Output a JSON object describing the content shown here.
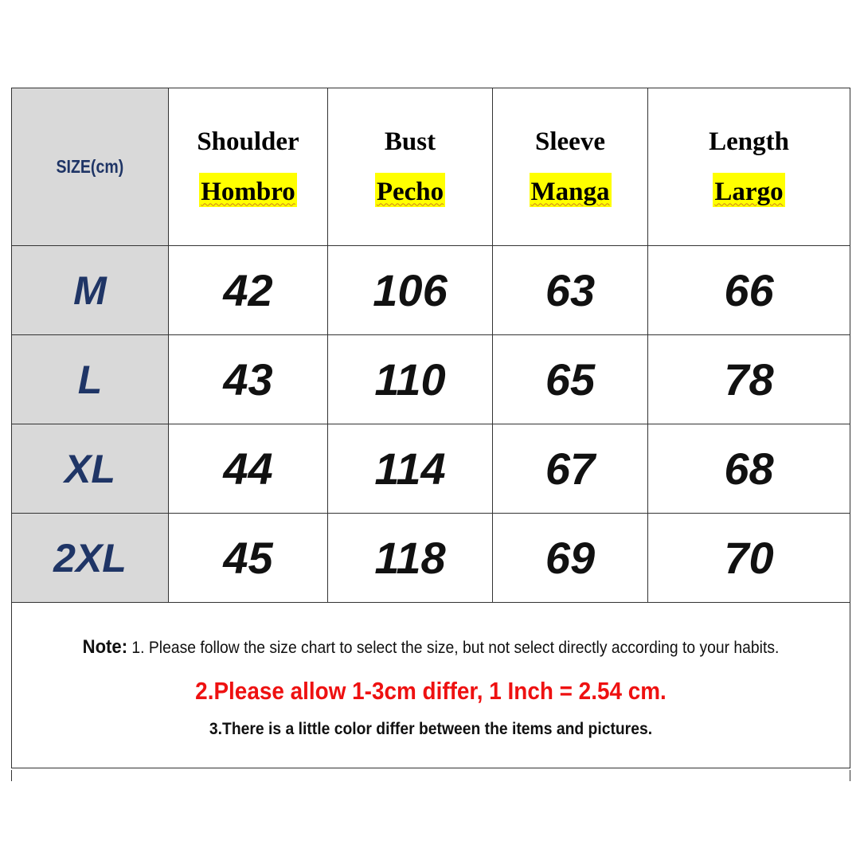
{
  "header": {
    "size_label": "SIZE(cm)",
    "columns": [
      {
        "en": "Shoulder",
        "es": "Hombro"
      },
      {
        "en": "Bust",
        "es": "Pecho"
      },
      {
        "en": "Sleeve",
        "es": "Manga"
      },
      {
        "en": "Length",
        "es": "Largo"
      }
    ]
  },
  "rows": [
    {
      "size": "M",
      "values": [
        "42",
        "106",
        "63",
        "66"
      ]
    },
    {
      "size": "L",
      "values": [
        "43",
        "110",
        "65",
        "78"
      ]
    },
    {
      "size": "XL",
      "values": [
        "44",
        "114",
        "67",
        "68"
      ]
    },
    {
      "size": "2XL",
      "values": [
        "45",
        "118",
        "69",
        "70"
      ]
    }
  ],
  "notes": {
    "prefix": "Note:",
    "note1": "1. Please follow the size chart to select the size, but not select directly according to your habits.",
    "note2": "2.Please allow 1-3cm differ, 1 Inch = 2.54 cm.",
    "note3": "3.There is a little color differ between the items and pictures."
  },
  "colors": {
    "highlight": "#ffff00",
    "size_text": "#1f3566",
    "warning": "#ee1111",
    "size_bg": "#d9d9d9"
  }
}
